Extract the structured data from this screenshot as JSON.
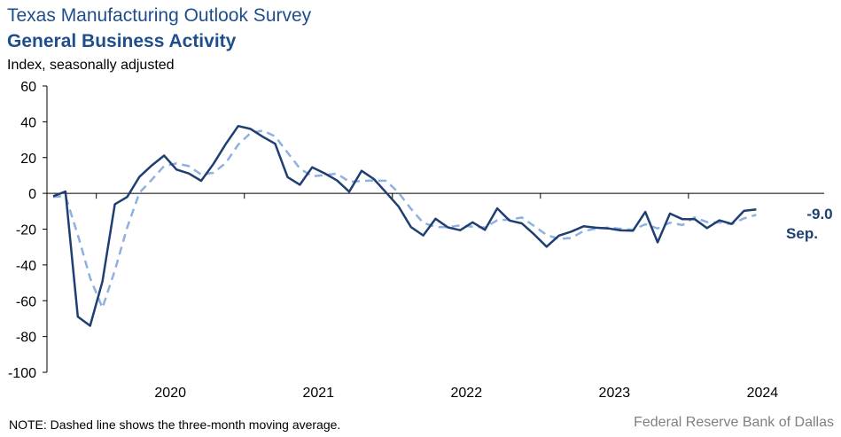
{
  "header": {
    "title": "Texas Manufacturing Outlook Survey",
    "subtitle": "General Business Activity",
    "ylabel": "Index, seasonally adjusted"
  },
  "footer": {
    "note": "NOTE: Dashed line shows the three-month  moving average.",
    "source": "Federal Reserve Bank of Dallas"
  },
  "colors": {
    "actual": "#1f3f73",
    "moving_average": "#8fb0e0",
    "axis": "#000000"
  },
  "chart_data": {
    "type": "line",
    "title": "General Business Activity",
    "ylabel": "Index, seasonally adjusted",
    "xlabel": "",
    "ylim": [
      -100,
      60
    ],
    "yticks": [
      60,
      40,
      20,
      0,
      -20,
      -40,
      -60,
      -80,
      -100
    ],
    "x_tick_labels": [
      "2020",
      "2021",
      "2022",
      "2023",
      "2024"
    ],
    "x_start": "2019-09",
    "grid": false,
    "series": [
      {
        "values": [
          -1.6,
          1.0,
          -68.9,
          -74.0,
          -49.2,
          -6.1,
          -2.0,
          9.3,
          15.6,
          21.1,
          13.3,
          11.1,
          7.0,
          16.5,
          27.6,
          37.6,
          36.0,
          31.6,
          27.7,
          9.1,
          4.8,
          14.6,
          11.2,
          7.3,
          0.9,
          12.6,
          8.0,
          0.4,
          -7.3,
          -18.8,
          -23.5,
          -14.2,
          -19.0,
          -20.6,
          -16.2,
          -20.4,
          -8.4,
          -15.2,
          -16.8,
          -23.0,
          -29.8,
          -23.6,
          -21.4,
          -18.4,
          -19.2,
          -19.6,
          -20.7,
          -20.9,
          -10.4,
          -27.4,
          -11.3,
          -14.4,
          -14.4,
          -19.4,
          -15.1,
          -17.1,
          -9.8,
          -9.0
        ],
        "dashed": false
      },
      {
        "values": [
          -2.0,
          -1.5,
          -23.2,
          -47.3,
          -64.0,
          -43.1,
          -19.1,
          0.4,
          7.6,
          15.3,
          16.7,
          15.2,
          10.5,
          11.5,
          17.0,
          27.2,
          33.7,
          35.1,
          31.8,
          22.8,
          13.9,
          9.5,
          10.2,
          11.0,
          6.5,
          6.9,
          7.2,
          7.0,
          0.4,
          -8.6,
          -16.5,
          -18.8,
          -18.9,
          -17.9,
          -18.6,
          -19.1,
          -15.0,
          -14.7,
          -13.5,
          -18.3,
          -23.2,
          -25.5,
          -24.9,
          -21.1,
          -19.7,
          -19.1,
          -19.8,
          -20.4,
          -17.3,
          -19.6,
          -16.4,
          -17.7,
          -13.4,
          -16.1,
          -16.3,
          -17.2,
          -14.0,
          -12.0
        ],
        "dashed": true
      }
    ],
    "annotations": [
      {
        "value_label": "-9.0",
        "month_label": "Sep."
      }
    ]
  }
}
